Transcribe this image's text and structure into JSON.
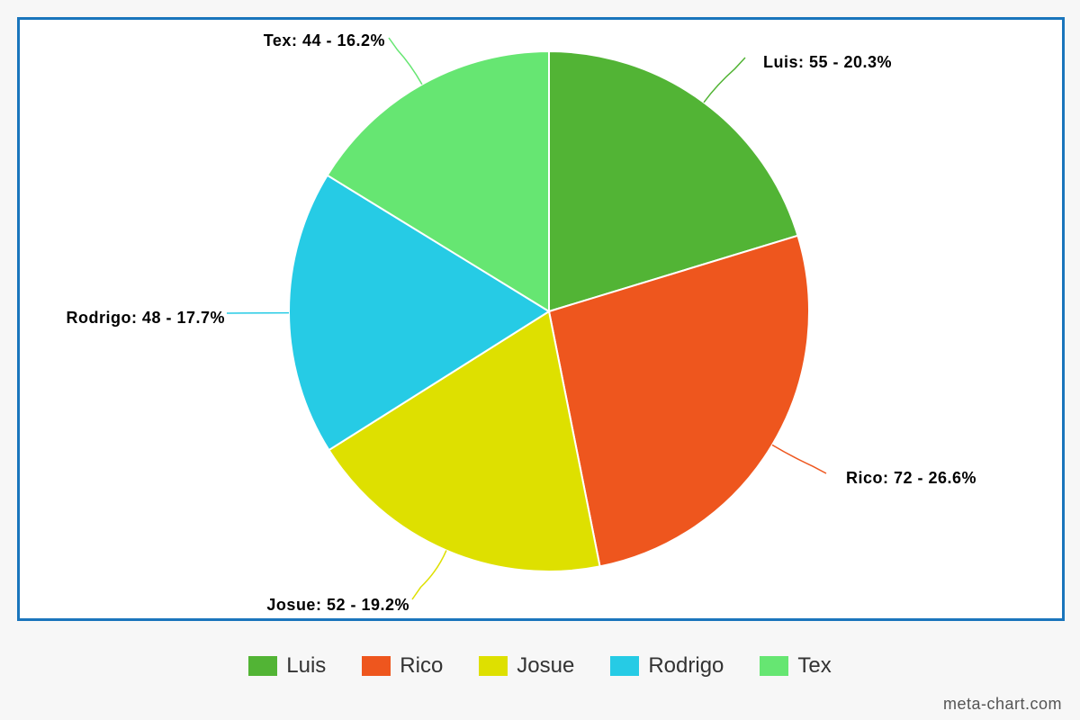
{
  "chart_data": {
    "type": "pie",
    "title": "",
    "categories": [
      "Luis",
      "Rico",
      "Josue",
      "Rodrigo",
      "Tex"
    ],
    "values": [
      55,
      72,
      52,
      48,
      44
    ],
    "percentages": [
      20.3,
      26.6,
      19.2,
      17.7,
      16.2
    ],
    "labels": [
      "Luis: 55 - 20.3%",
      "Rico: 72 - 26.6%",
      "Josue: 52 - 19.2%",
      "Rodrigo: 48 - 17.7%",
      "Tex: 44 - 16.2%"
    ],
    "colors": [
      "#52b435",
      "#ee561e",
      "#dee000",
      "#26cbe5",
      "#66e672"
    ],
    "legend_placement": "bottom"
  },
  "legend": {
    "items": [
      {
        "label": "Luis",
        "color": "#52b435"
      },
      {
        "label": "Rico",
        "color": "#ee561e"
      },
      {
        "label": "Josue",
        "color": "#dee000"
      },
      {
        "label": "Rodrigo",
        "color": "#26cbe5"
      },
      {
        "label": "Tex",
        "color": "#66e672"
      }
    ]
  },
  "frame": {
    "border_color": "#1a75bc"
  },
  "watermark": "meta-chart.com"
}
